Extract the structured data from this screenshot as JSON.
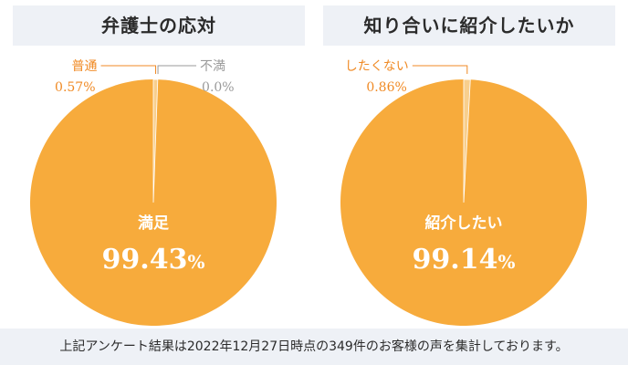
{
  "colors": {
    "main": "#f7ab3c",
    "minor": "#f8cf8d",
    "minor_label": "#f08a24",
    "zero_label": "#9a9a9a",
    "title_bg": "#eef1f6"
  },
  "chart_data": [
    {
      "type": "pie",
      "title": "弁護士の応対",
      "slices": [
        {
          "label": "満足",
          "value": 99.43,
          "display": "99.43",
          "unit": "%"
        },
        {
          "label": "普通",
          "value": 0.57,
          "display": "0.57%"
        },
        {
          "label": "不満",
          "value": 0.0,
          "display": "0.0%"
        }
      ]
    },
    {
      "type": "pie",
      "title": "知り合いに紹介したいか",
      "slices": [
        {
          "label": "紹介したい",
          "value": 99.14,
          "display": "99.14",
          "unit": "%"
        },
        {
          "label": "したくない",
          "value": 0.86,
          "display": "0.86%"
        }
      ]
    }
  ],
  "footnote": "上記アンケート結果は2022年12月27日時点の349件のお客様の声を集計しております。"
}
